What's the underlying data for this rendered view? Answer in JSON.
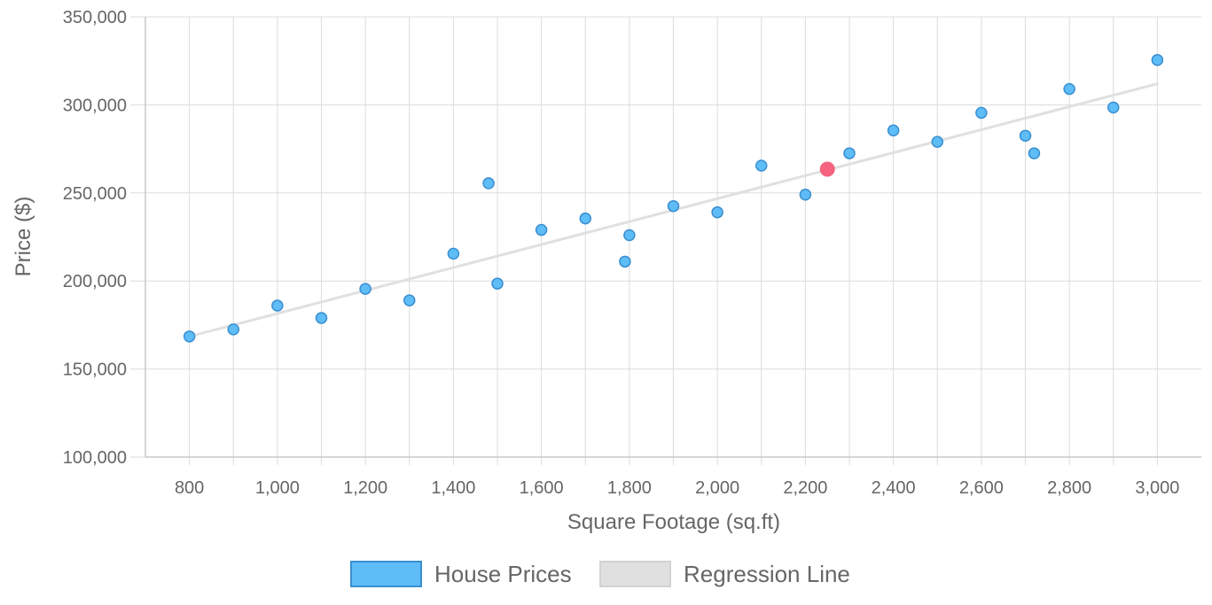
{
  "chart_data": {
    "type": "scatter",
    "xlabel": "Square Footage (sq.ft)",
    "ylabel": "Price ($)",
    "xlim": [
      700,
      3100
    ],
    "ylim": [
      100000,
      350000
    ],
    "x_ticks": [
      800,
      1000,
      1200,
      1400,
      1600,
      1800,
      2000,
      2200,
      2400,
      2600,
      2800,
      3000
    ],
    "x_tick_labels": [
      "800",
      "1,000",
      "1,200",
      "1,400",
      "1,600",
      "1,800",
      "2,000",
      "2,200",
      "2,400",
      "2,600",
      "2,800",
      "3,000"
    ],
    "x_grid": [
      800,
      900,
      1000,
      1100,
      1200,
      1300,
      1400,
      1500,
      1600,
      1700,
      1800,
      1900,
      2000,
      2100,
      2200,
      2300,
      2400,
      2500,
      2600,
      2700,
      2800,
      2900,
      3000
    ],
    "y_ticks": [
      100000,
      150000,
      200000,
      250000,
      300000,
      350000
    ],
    "y_tick_labels": [
      "100,000",
      "150,000",
      "200,000",
      "250,000",
      "300,000",
      "350,000"
    ],
    "grid": true,
    "legend_position": "bottom",
    "series": [
      {
        "name": "House Prices",
        "color": "#5ebcf7",
        "edge_color": "#3a8fd0",
        "points": [
          {
            "x": 800,
            "y": 168500
          },
          {
            "x": 900,
            "y": 172500
          },
          {
            "x": 1000,
            "y": 186000
          },
          {
            "x": 1100,
            "y": 179000
          },
          {
            "x": 1200,
            "y": 195500
          },
          {
            "x": 1300,
            "y": 189000
          },
          {
            "x": 1400,
            "y": 215500
          },
          {
            "x": 1480,
            "y": 255500
          },
          {
            "x": 1500,
            "y": 198500
          },
          {
            "x": 1600,
            "y": 229000
          },
          {
            "x": 1700,
            "y": 235500
          },
          {
            "x": 1790,
            "y": 211000
          },
          {
            "x": 1800,
            "y": 226000
          },
          {
            "x": 1900,
            "y": 242500
          },
          {
            "x": 2000,
            "y": 239000
          },
          {
            "x": 2100,
            "y": 265500
          },
          {
            "x": 2200,
            "y": 249000
          },
          {
            "x": 2250,
            "y": 263500,
            "highlight": true
          },
          {
            "x": 2300,
            "y": 272500
          },
          {
            "x": 2400,
            "y": 285500
          },
          {
            "x": 2500,
            "y": 279000
          },
          {
            "x": 2600,
            "y": 295500
          },
          {
            "x": 2700,
            "y": 282500
          },
          {
            "x": 2720,
            "y": 272500
          },
          {
            "x": 2800,
            "y": 309000
          },
          {
            "x": 2900,
            "y": 298500
          },
          {
            "x": 3000,
            "y": 325500
          }
        ]
      },
      {
        "name": "Regression Line",
        "type": "line",
        "color": "#e0e0e0",
        "points": [
          {
            "x": 800,
            "y": 168500
          },
          {
            "x": 3000,
            "y": 312000
          }
        ]
      }
    ],
    "highlight_color": "#f5637f"
  }
}
